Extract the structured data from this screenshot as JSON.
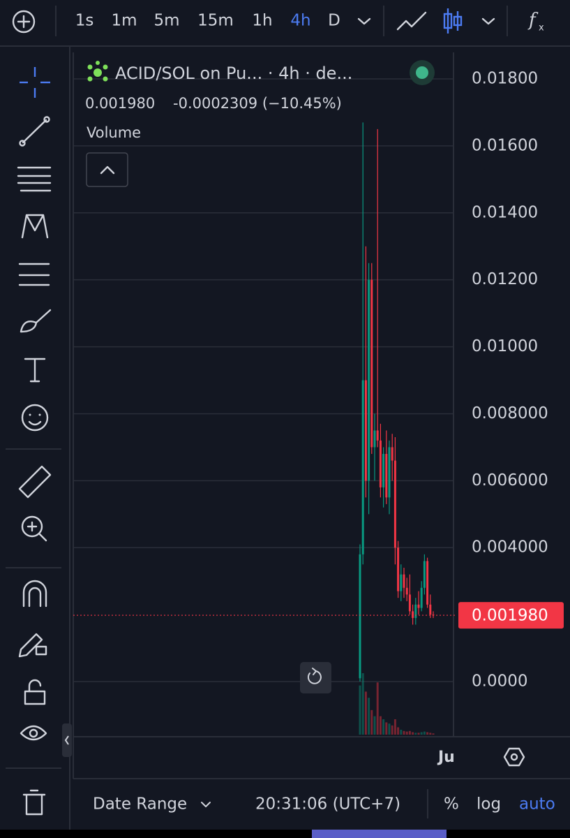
{
  "toolbar": {
    "intervals": [
      "1s",
      "1m",
      "5m",
      "15m",
      "1h",
      "4h",
      "D"
    ],
    "active_interval": "4h"
  },
  "legend": {
    "title": "ACID/SOL on Pu... · 4h · de...",
    "price": "0.001980",
    "change": "-0.0002309 (−10.45%)",
    "indicator": "Volume"
  },
  "chart_data": {
    "type": "candlestick",
    "open": [
      0.0001,
      0.0038,
      0.009,
      0.006,
      0.012,
      0.007,
      0.0075,
      0.0072,
      0.0058,
      0.0068,
      0.0055,
      0.007,
      0.0066,
      0.004,
      0.0027,
      0.0032,
      0.0028,
      0.0026,
      0.0021,
      0.0019,
      0.0023,
      0.0022,
      0.0028,
      0.0036,
      0.0023,
      0.002
    ],
    "high": [
      0.0041,
      0.0167,
      0.013,
      0.0125,
      0.0125,
      0.008,
      0.0165,
      0.0077,
      0.007,
      0.0075,
      0.0072,
      0.0074,
      0.0073,
      0.0042,
      0.0035,
      0.0034,
      0.0031,
      0.0032,
      0.0023,
      0.0025,
      0.0027,
      0.003,
      0.0038,
      0.0037,
      0.0026,
      0.0021
    ],
    "low": [
      0.0,
      0.0035,
      0.0055,
      0.005,
      0.0068,
      0.006,
      0.007,
      0.0055,
      0.0052,
      0.0053,
      0.005,
      0.006,
      0.0035,
      0.0025,
      0.0024,
      0.0025,
      0.0024,
      0.002,
      0.0017,
      0.0017,
      0.002,
      0.0021,
      0.0026,
      0.0022,
      0.0019,
      0.0019
    ],
    "close": [
      0.0038,
      0.009,
      0.006,
      0.012,
      0.007,
      0.0075,
      0.0072,
      0.0058,
      0.0068,
      0.0055,
      0.007,
      0.0066,
      0.004,
      0.0027,
      0.0032,
      0.0028,
      0.0026,
      0.0021,
      0.0019,
      0.0023,
      0.0022,
      0.0028,
      0.0036,
      0.0023,
      0.002,
      0.00198
    ],
    "volume": [
      80,
      100,
      70,
      60,
      40,
      30,
      85,
      30,
      25,
      20,
      18,
      15,
      25,
      12,
      8,
      6,
      5,
      6,
      4,
      3,
      3,
      4,
      5,
      4,
      3,
      2
    ],
    "up_color": "#089981",
    "down_color": "#f23645",
    "ylim": [
      -0.001585,
      0.018793
    ],
    "yticks": [
      {
        "value": 0.018,
        "label": "0.01800"
      },
      {
        "value": 0.016,
        "label": "0.01600"
      },
      {
        "value": 0.014,
        "label": "0.01400"
      },
      {
        "value": 0.012,
        "label": "0.01200"
      },
      {
        "value": 0.01,
        "label": "0.01000"
      },
      {
        "value": 0.008,
        "label": "0.008000"
      },
      {
        "value": 0.006,
        "label": "0.006000"
      },
      {
        "value": 0.004,
        "label": "0.004000"
      },
      {
        "value": 0.0,
        "label": "0.0000"
      }
    ],
    "current_price": {
      "value": 0.00198,
      "label": "0.001980"
    },
    "x_label": "Ju",
    "grid": true
  },
  "bottom_bar": {
    "date_range": "Date Range",
    "time": "20:31:06 (UTC+7)",
    "percent": "%",
    "log": "log",
    "auto": "auto"
  }
}
